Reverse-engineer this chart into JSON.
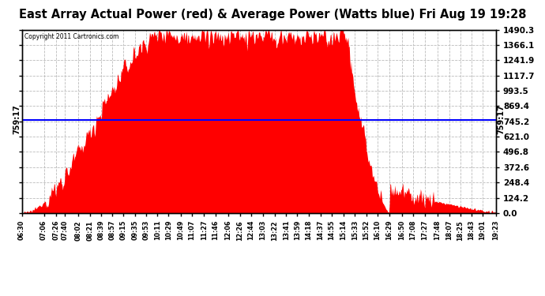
{
  "title": "East Array Actual Power (red) & Average Power (Watts blue) Fri Aug 19 19:28",
  "copyright": "Copyright 2011 Cartronics.com",
  "avg_line_y": 759.17,
  "avg_label": "759:17",
  "ymin": 0.0,
  "ymax": 1490.3,
  "yticks": [
    0.0,
    124.2,
    248.4,
    372.6,
    496.8,
    621.0,
    745.2,
    869.4,
    993.5,
    1117.7,
    1241.9,
    1366.1,
    1490.3
  ],
  "background_color": "#ffffff",
  "plot_bg_color": "#ffffff",
  "grid_color": "#bbbbbb",
  "fill_color": "#ff0000",
  "line_color": "#0000ff",
  "title_fontsize": 10.5,
  "peak_power": 1490.3,
  "xtick_labels": [
    "06:30",
    "07:06",
    "07:26",
    "07:40",
    "08:02",
    "08:21",
    "08:39",
    "08:57",
    "09:15",
    "09:35",
    "09:53",
    "10:11",
    "10:29",
    "10:49",
    "11:07",
    "11:27",
    "11:46",
    "12:06",
    "12:26",
    "12:44",
    "13:03",
    "13:22",
    "13:41",
    "13:59",
    "14:18",
    "14:37",
    "14:55",
    "15:14",
    "15:33",
    "15:52",
    "16:10",
    "16:29",
    "16:50",
    "17:08",
    "17:27",
    "17:48",
    "18:07",
    "18:25",
    "18:43",
    "19:01",
    "19:23"
  ]
}
